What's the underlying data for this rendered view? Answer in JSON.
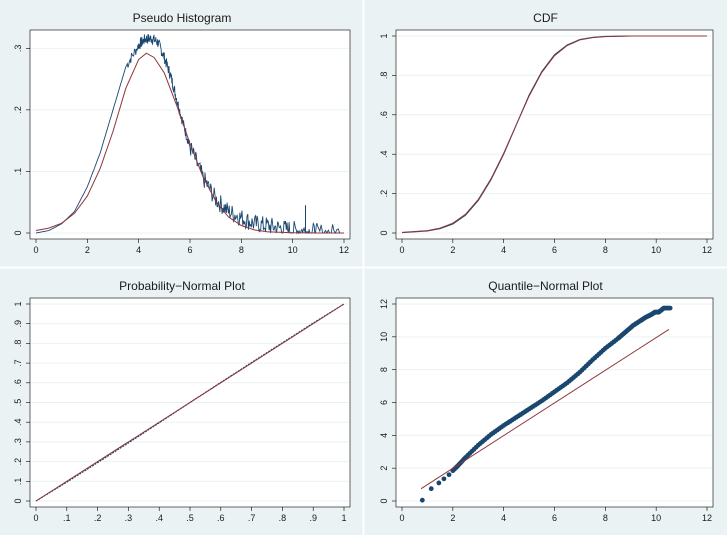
{
  "chart_data": [
    {
      "type": "line",
      "title": "Pseudo Histogram",
      "xlim": [
        0,
        12
      ],
      "ylim": [
        0,
        0.32
      ],
      "xticks": [
        "0",
        "2",
        "4",
        "6",
        "8",
        "10",
        "12"
      ],
      "yticks": [
        "0",
        ".1",
        ".2",
        ".3"
      ],
      "series": [
        {
          "kind": "empirical-histogram",
          "color": "#1a476f",
          "x": [
            0,
            0.5,
            1.0,
            1.5,
            2.0,
            2.5,
            3.0,
            3.5,
            4.0,
            4.25,
            4.5,
            4.75,
            5.0,
            5.25,
            5.5,
            5.75,
            6.0,
            6.5,
            7.0,
            7.5,
            8.0,
            8.5,
            9.0,
            9.5,
            10.0,
            10.5,
            11.0,
            12.0
          ],
          "y": [
            0,
            0.004,
            0.015,
            0.035,
            0.075,
            0.13,
            0.2,
            0.27,
            0.305,
            0.315,
            0.316,
            0.31,
            0.285,
            0.255,
            0.215,
            0.175,
            0.14,
            0.09,
            0.055,
            0.035,
            0.025,
            0.015,
            0.012,
            0.008,
            0.005,
            0.003,
            0.001,
            0
          ]
        },
        {
          "kind": "normal-density",
          "color": "#90353b",
          "x": [
            0,
            0.5,
            1.0,
            1.5,
            2.0,
            2.5,
            3.0,
            3.5,
            4.0,
            4.3,
            4.6,
            5.0,
            5.5,
            6.0,
            6.5,
            7.0,
            7.5,
            8.0,
            8.5,
            9.0,
            10.0,
            11.0,
            12.0
          ],
          "y": [
            0.004,
            0.008,
            0.016,
            0.032,
            0.06,
            0.105,
            0.165,
            0.235,
            0.282,
            0.292,
            0.285,
            0.26,
            0.205,
            0.145,
            0.092,
            0.052,
            0.026,
            0.012,
            0.005,
            0.002,
            0.0003,
            0,
            0
          ]
        }
      ]
    },
    {
      "type": "line",
      "title": "CDF",
      "xlim": [
        0,
        12
      ],
      "ylim": [
        0,
        1
      ],
      "xticks": [
        "0",
        "2",
        "4",
        "6",
        "8",
        "10",
        "12"
      ],
      "yticks": [
        "0",
        ".2",
        ".4",
        ".6",
        ".8",
        "1"
      ],
      "series": [
        {
          "kind": "empirical-cdf",
          "color": "#1a476f",
          "x": [
            0,
            1,
            1.5,
            2,
            2.5,
            3,
            3.5,
            4,
            4.5,
            5,
            5.5,
            6,
            6.5,
            7,
            7.5,
            8,
            9,
            10,
            12
          ],
          "y": [
            0.002,
            0.01,
            0.022,
            0.045,
            0.09,
            0.165,
            0.27,
            0.4,
            0.55,
            0.7,
            0.82,
            0.905,
            0.955,
            0.982,
            0.993,
            0.998,
            1,
            1,
            1
          ]
        },
        {
          "kind": "normal-cdf",
          "color": "#90353b",
          "x": [
            0,
            1,
            1.5,
            2,
            2.5,
            3,
            3.5,
            4,
            4.5,
            5,
            5.5,
            6,
            6.5,
            7,
            7.5,
            8,
            9,
            10,
            12
          ],
          "y": [
            0.003,
            0.012,
            0.025,
            0.05,
            0.095,
            0.17,
            0.275,
            0.405,
            0.55,
            0.695,
            0.815,
            0.9,
            0.952,
            0.98,
            0.992,
            0.997,
            1,
            1,
            1
          ]
        }
      ]
    },
    {
      "type": "line",
      "title": "Probability−Normal Plot",
      "xlim": [
        0,
        1
      ],
      "ylim": [
        0,
        1
      ],
      "xticks": [
        "0",
        ".1",
        ".2",
        ".3",
        ".4",
        ".5",
        ".6",
        ".7",
        ".8",
        ".9",
        "1"
      ],
      "yticks": [
        "0",
        ".1",
        ".2",
        ".3",
        ".4",
        ".5",
        ".6",
        ".7",
        ".8",
        ".9",
        "1"
      ],
      "series": [
        {
          "kind": "empirical",
          "color": "#1a476f",
          "x": [
            0,
            0.1,
            0.2,
            0.3,
            0.4,
            0.5,
            0.6,
            0.7,
            0.8,
            0.9,
            1
          ],
          "y": [
            0,
            0.096,
            0.195,
            0.295,
            0.397,
            0.5,
            0.602,
            0.703,
            0.803,
            0.903,
            1
          ]
        },
        {
          "kind": "reference-line",
          "color": "#90353b",
          "x": [
            0,
            1
          ],
          "y": [
            0,
            1
          ]
        }
      ]
    },
    {
      "type": "scatter",
      "title": "Quantile−Normal Plot",
      "xlim": [
        0,
        12
      ],
      "ylim": [
        0,
        12
      ],
      "xticks": [
        "0",
        "2",
        "4",
        "6",
        "8",
        "10",
        "12"
      ],
      "yticks": [
        "0",
        "2",
        "4",
        "6",
        "8",
        "10",
        "12"
      ],
      "series": [
        {
          "kind": "quantiles",
          "color": "#1a476f",
          "x": [
            0.8,
            1.15,
            1.45,
            1.65,
            1.85,
            2.0,
            2.2,
            2.5,
            3.0,
            3.5,
            4.0,
            4.5,
            5.0,
            5.5,
            6.0,
            6.5,
            7.0,
            7.5,
            8.0,
            8.5,
            8.8,
            9.1,
            9.4,
            9.6,
            9.8,
            9.95,
            10.1,
            10.3,
            10.55
          ],
          "y": [
            0.05,
            0.75,
            1.1,
            1.35,
            1.6,
            1.85,
            2.15,
            2.65,
            3.4,
            4.05,
            4.6,
            5.1,
            5.6,
            6.1,
            6.65,
            7.2,
            7.85,
            8.6,
            9.3,
            9.9,
            10.3,
            10.7,
            11.0,
            11.2,
            11.35,
            11.5,
            11.5,
            11.75,
            11.75
          ]
        },
        {
          "kind": "reference-line",
          "color": "#90353b",
          "x": [
            0.75,
            10.5
          ],
          "y": [
            0.75,
            10.45
          ]
        }
      ]
    }
  ]
}
